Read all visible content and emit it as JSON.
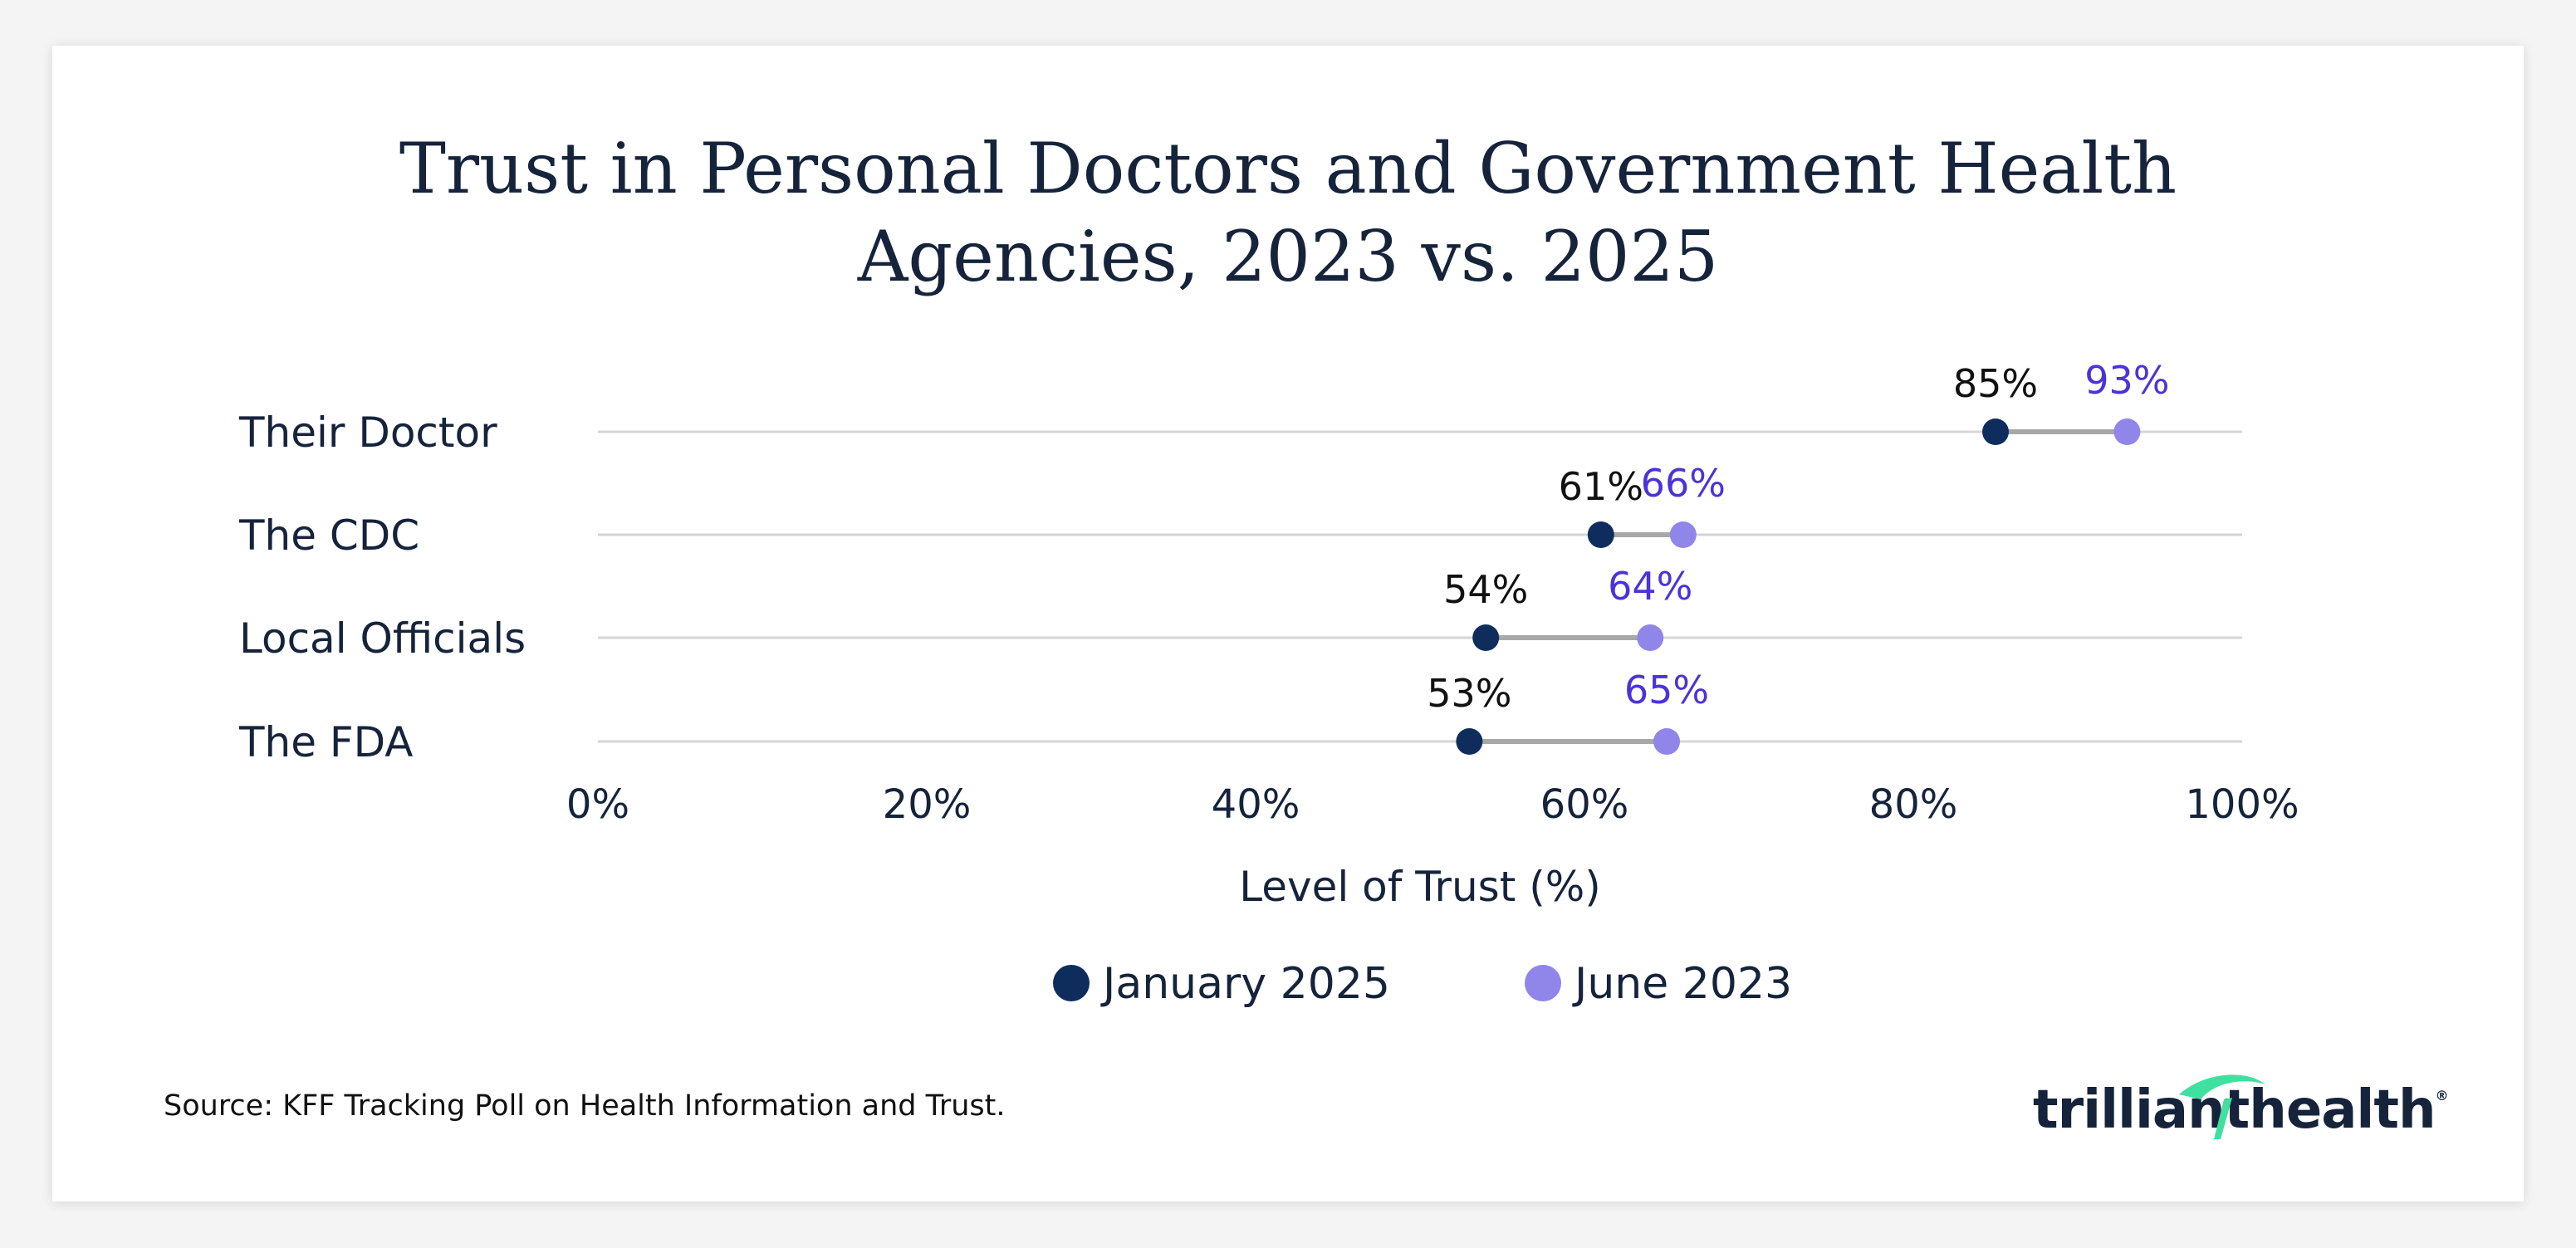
{
  "title_line1": "Trust in Personal Doctors and Government Health",
  "title_line2": "Agencies, 2023 vs. 2025",
  "source": "Source: KFF Tracking Poll on Health Information and Trust.",
  "logo": {
    "part1": "trilliant",
    "part2": "health",
    "reg": "®"
  },
  "colors": {
    "jan2025": "#0f2d5c",
    "jun2023": "#9085e9",
    "jun2023_label": "#4b33d8",
    "connector": "#a8a8a8",
    "gridline": "#d6d6d6",
    "logo_mark": "#3fe0a0"
  },
  "chart_data": {
    "type": "dumbbell",
    "title": "Trust in Personal Doctors and Government Health Agencies, 2023 vs. 2025",
    "xlabel": "Level of Trust (%)",
    "ylabel": "",
    "xlim": [
      0,
      100
    ],
    "xticks": [
      "0%",
      "20%",
      "40%",
      "60%",
      "80%",
      "100%"
    ],
    "xtick_values": [
      0,
      20,
      40,
      60,
      80,
      100
    ],
    "categories": [
      "Their Doctor",
      "The CDC",
      "Local Officials",
      "The FDA"
    ],
    "series": [
      {
        "name": "January 2025",
        "values": [
          85,
          61,
          54,
          53
        ],
        "labels": [
          "85%",
          "61%",
          "54%",
          "53%"
        ]
      },
      {
        "name": "June 2023",
        "values": [
          93,
          66,
          64,
          65
        ],
        "labels": [
          "93%",
          "66%",
          "64%",
          "65%"
        ]
      }
    ],
    "legend": "bottom-center"
  }
}
